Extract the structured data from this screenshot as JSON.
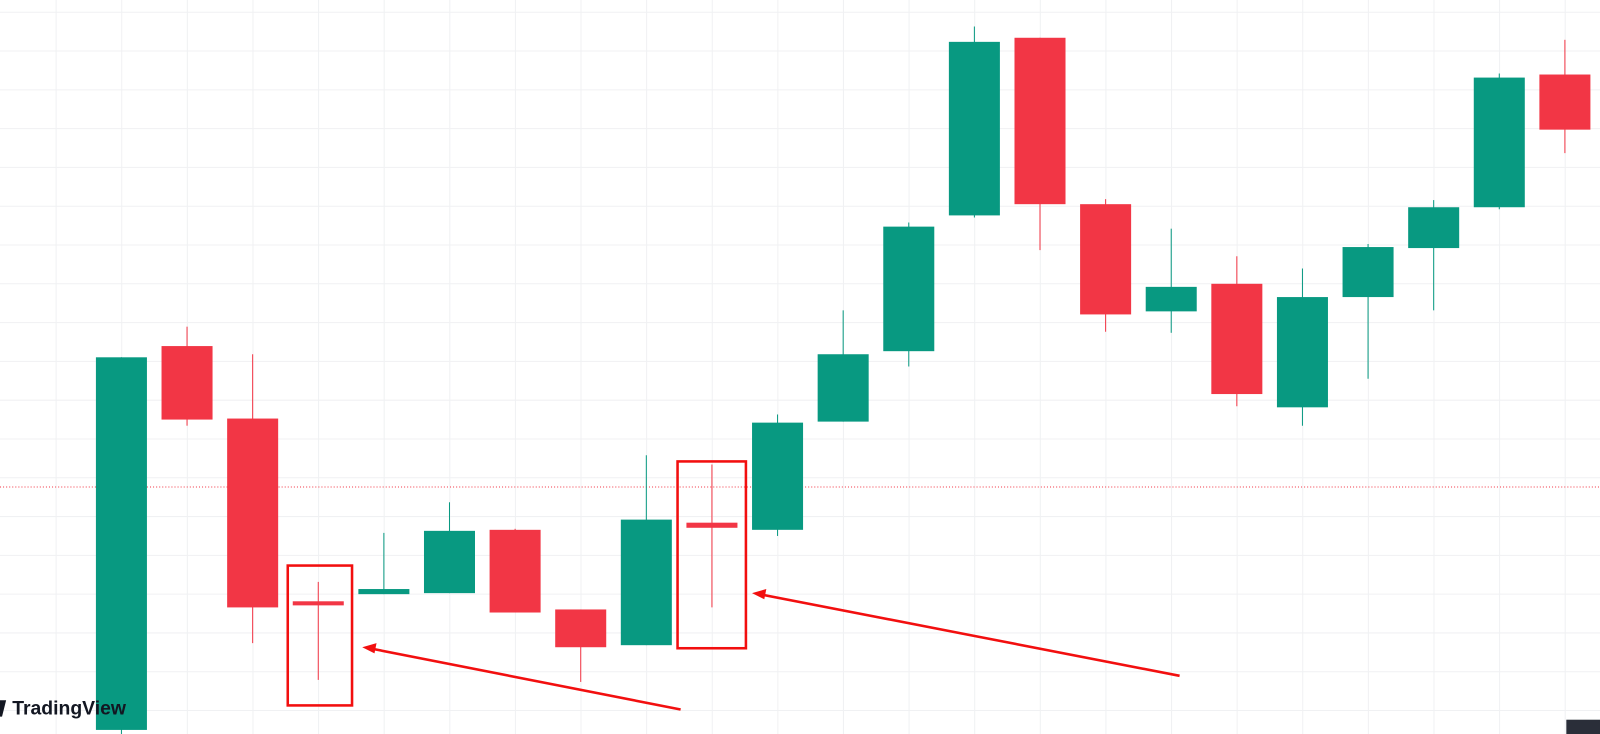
{
  "chart_data": {
    "type": "candlestick",
    "open": [
      4,
      380,
      309,
      130,
      137,
      138,
      200,
      122,
      87,
      207,
      200,
      306,
      375,
      508,
      682,
      519,
      414,
      441,
      320,
      428,
      476,
      516,
      646
    ],
    "high": [
      369,
      399,
      372,
      149,
      197,
      227,
      201,
      122,
      273,
      264,
      313,
      415,
      501,
      693,
      682,
      524,
      495,
      468,
      456,
      480,
      523,
      647,
      680
    ],
    "low": [
      0,
      302,
      89,
      53,
      137,
      138,
      119,
      51,
      87,
      124,
      194,
      306,
      360,
      506,
      474,
      394,
      393,
      321,
      302,
      348,
      415,
      514,
      569
    ],
    "close": [
      369,
      308,
      124,
      126,
      142,
      199,
      119,
      85,
      210,
      202,
      305,
      372,
      497,
      678,
      519,
      411,
      438,
      333,
      428,
      477,
      516,
      643,
      592
    ],
    "ylim": [
      0,
      719
    ],
    "up_color": "#089981",
    "down_color": "#f23645",
    "logo": "TradingView"
  }
}
